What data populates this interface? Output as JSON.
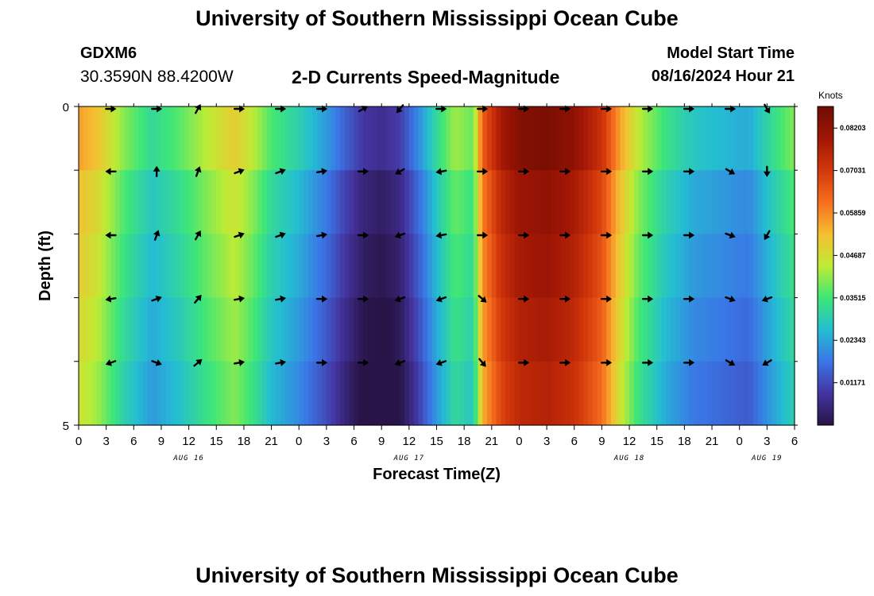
{
  "header": {
    "main_title": "University of Southern Mississippi Ocean Cube",
    "station": "GDXM6",
    "coordinates": "30.3590N  88.4200W",
    "chart_title": "2-D Currents Speed-Magnitude",
    "model_start_label": "Model Start Time",
    "model_start_value": "08/16/2024 Hour 21"
  },
  "footer": {
    "title": "University of Southern Mississippi Ocean Cube"
  },
  "chart_data": {
    "type": "heatmap",
    "title": "2-D Currents Speed-Magnitude",
    "xlabel": "Forecast Time(Z)",
    "ylabel": "Depth (ft)",
    "units": "Knots",
    "x_hours_from_aug16_00z": [
      0,
      78
    ],
    "x_tick_labels": [
      "0",
      "3",
      "6",
      "9",
      "12",
      "15",
      "18",
      "21",
      "0",
      "3",
      "6",
      "9",
      "12",
      "15",
      "18",
      "21",
      "0",
      "3",
      "6",
      "9",
      "12",
      "15",
      "18",
      "21",
      "0",
      "3",
      "6"
    ],
    "date_labels": [
      {
        "label": "AUG 16",
        "hour": 12
      },
      {
        "label": "AUG 17",
        "hour": 36
      },
      {
        "label": "AUG 18",
        "hour": 60
      },
      {
        "label": "AUG 19",
        "hour": 75
      }
    ],
    "y_range": [
      0,
      5
    ],
    "y_tick_labels": [
      {
        "value": 0,
        "label": "0"
      },
      {
        "value": 5,
        "label": "5"
      }
    ],
    "depth_layers": 5,
    "colorbar": {
      "range": [
        0.0,
        0.088
      ],
      "tick_values": [
        0.01171,
        0.02343,
        0.03515,
        0.04687,
        0.05859,
        0.07031,
        0.08203
      ],
      "tick_labels": [
        "0.01171",
        "0.02343",
        "0.03515",
        "0.04687",
        "0.05859",
        "0.07031",
        "0.08203"
      ]
    },
    "speed_profile_knots": [
      {
        "hour": 0,
        "v": 0.052
      },
      {
        "hour": 2,
        "v": 0.048
      },
      {
        "hour": 5,
        "v": 0.036
      },
      {
        "hour": 8,
        "v": 0.028
      },
      {
        "hour": 11,
        "v": 0.033
      },
      {
        "hour": 14,
        "v": 0.04
      },
      {
        "hour": 17,
        "v": 0.046
      },
      {
        "hour": 19,
        "v": 0.04
      },
      {
        "hour": 21,
        "v": 0.032
      },
      {
        "hour": 24,
        "v": 0.026
      },
      {
        "hour": 27,
        "v": 0.018
      },
      {
        "hour": 29,
        "v": 0.011
      },
      {
        "hour": 31,
        "v": 0.005
      },
      {
        "hour": 33,
        "v": 0.003
      },
      {
        "hour": 35,
        "v": 0.006
      },
      {
        "hour": 37,
        "v": 0.016
      },
      {
        "hour": 39,
        "v": 0.028
      },
      {
        "hour": 41,
        "v": 0.038
      },
      {
        "hour": 43,
        "v": 0.034
      },
      {
        "hour": 44,
        "v": 0.06
      },
      {
        "hour": 46,
        "v": 0.074
      },
      {
        "hour": 48,
        "v": 0.08
      },
      {
        "hour": 51,
        "v": 0.082
      },
      {
        "hour": 54,
        "v": 0.078
      },
      {
        "hour": 57,
        "v": 0.068
      },
      {
        "hour": 59,
        "v": 0.052
      },
      {
        "hour": 61,
        "v": 0.04
      },
      {
        "hour": 64,
        "v": 0.03
      },
      {
        "hour": 67,
        "v": 0.024
      },
      {
        "hour": 70,
        "v": 0.022
      },
      {
        "hour": 73,
        "v": 0.02
      },
      {
        "hour": 76,
        "v": 0.03
      },
      {
        "hour": 78,
        "v": 0.036
      }
    ],
    "layer_offsets_knots": [
      0.004,
      0.0,
      -0.002,
      -0.004,
      -0.006
    ],
    "arrow_hours": [
      3.5,
      8.5,
      13,
      17.5,
      22,
      26.5,
      31,
      35,
      39.5,
      44,
      48.5,
      53,
      57.5,
      62,
      66.5,
      71,
      75
    ],
    "arrow_directions_deg": [
      [
        0,
        0,
        60,
        0,
        0,
        0,
        30,
        230,
        0,
        0,
        0,
        0,
        0,
        0,
        0,
        0,
        300
      ],
      [
        180,
        90,
        70,
        20,
        20,
        10,
        0,
        210,
        190,
        0,
        0,
        0,
        0,
        0,
        0,
        330,
        270
      ],
      [
        180,
        70,
        60,
        20,
        20,
        10,
        0,
        200,
        190,
        0,
        0,
        0,
        0,
        0,
        0,
        340,
        240
      ],
      [
        190,
        20,
        50,
        10,
        10,
        0,
        0,
        200,
        200,
        320,
        0,
        0,
        0,
        0,
        0,
        340,
        200
      ],
      [
        200,
        340,
        40,
        10,
        10,
        0,
        0,
        200,
        200,
        310,
        0,
        0,
        0,
        0,
        0,
        330,
        210
      ]
    ]
  }
}
